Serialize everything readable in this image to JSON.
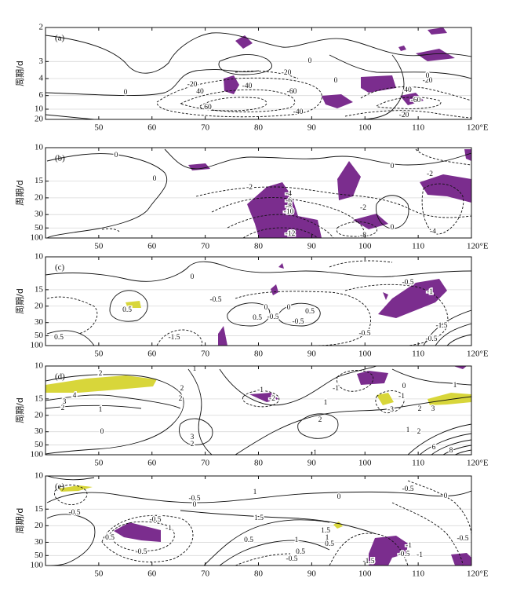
{
  "chart_data": [
    {
      "type": "contour",
      "label": "(a)",
      "ylabel": "周期/d",
      "xlim": [
        40,
        120
      ],
      "xticks": [
        50,
        60,
        70,
        80,
        90,
        100,
        110,
        {
          "value": 120,
          "label": "120°E"
        }
      ],
      "ylim": [
        2,
        20
      ],
      "yticks": [
        2,
        3,
        4,
        6,
        10,
        20
      ],
      "yscale": "reciprocal",
      "grid": true,
      "shade_colors": [
        "#7b2d8e",
        "#d8d63a"
      ],
      "contour_labels": [
        "0",
        "-20",
        "40",
        "60",
        "-40",
        "-20",
        "0",
        "0",
        "-60",
        "-40",
        "-20",
        "40",
        "-60",
        "-20",
        "0"
      ]
    },
    {
      "type": "contour",
      "label": "(b)",
      "ylabel": "周期/d",
      "xlim": [
        40,
        120
      ],
      "xticks": [
        50,
        60,
        70,
        80,
        90,
        100,
        110,
        {
          "value": 120,
          "label": "120°E"
        }
      ],
      "ylim": [
        10,
        100
      ],
      "yticks": [
        10,
        15,
        20,
        30,
        50,
        100
      ],
      "yscale": "reciprocal",
      "grid": true,
      "shade_colors": [
        "#7b2d8e",
        "#d8d63a"
      ],
      "contour_labels": [
        "0",
        "0",
        "-2",
        "-4",
        "-6",
        "-8",
        "-10",
        "-12",
        "-2",
        "-8",
        "0",
        "0",
        "-2",
        "-4"
      ]
    },
    {
      "type": "contour",
      "label": "(c)",
      "ylabel": "周期/d",
      "xlim": [
        40,
        120
      ],
      "xticks": [
        50,
        60,
        70,
        80,
        90,
        100,
        110,
        {
          "value": 120,
          "label": "120°E"
        }
      ],
      "ylim": [
        10,
        100
      ],
      "yticks": [
        10,
        15,
        20,
        30,
        50,
        100
      ],
      "yscale": "reciprocal",
      "grid": true,
      "shade_colors": [
        "#7b2d8e",
        "#d8d63a"
      ],
      "contour_labels": [
        "0",
        "-0.5",
        "0.5",
        "0.5",
        "-1.5",
        "0",
        "0.5",
        "-0.5",
        "0",
        "0.5",
        "-0.5",
        "-0.5",
        "-0.5",
        "-1",
        "-1.5",
        "-0.5"
      ]
    },
    {
      "type": "contour",
      "label": "(d)",
      "ylabel": "周期/d",
      "xlim": [
        40,
        120
      ],
      "xticks": [
        50,
        60,
        70,
        80,
        90,
        100,
        110,
        {
          "value": 120,
          "label": "120°E"
        }
      ],
      "ylim": [
        10,
        100
      ],
      "yticks": [
        10,
        15,
        20,
        30,
        50,
        100
      ],
      "yscale": "reciprocal",
      "grid": true,
      "shade_colors": [
        "#7b2d8e",
        "#d8d63a"
      ],
      "contour_labels": [
        "2",
        "1",
        "4",
        "3",
        "2",
        "2",
        "2",
        "1",
        "0",
        "3",
        "2",
        "-1",
        "-2",
        "-1",
        "1",
        "2",
        "-1",
        "0",
        "-1",
        "-3",
        "2",
        "3",
        "1",
        "1",
        "2",
        "8",
        "6"
      ]
    },
    {
      "type": "contour",
      "label": "(e)",
      "ylabel": "周期/d",
      "xlim": [
        40,
        120
      ],
      "xticks": [
        50,
        60,
        70,
        80,
        90,
        100,
        110,
        {
          "value": 120,
          "label": "120°E"
        }
      ],
      "ylim": [
        10,
        100
      ],
      "yticks": [
        10,
        15,
        20,
        30,
        50,
        100
      ],
      "yscale": "reciprocal",
      "grid": true,
      "shade_colors": [
        "#7b2d8e",
        "#d8d63a"
      ],
      "contour_labels": [
        "-0.5",
        "-0.5",
        "0",
        "1",
        "0",
        "-0.5",
        "0.5",
        "-0.5",
        "-1",
        "-0.5",
        "1.5",
        "0.5",
        "1",
        "0.5",
        "-0.5",
        "1.5",
        "1",
        "0.5",
        "-1.5",
        "-0.5",
        "-1",
        "-0.5",
        "0",
        "-1"
      ]
    }
  ]
}
